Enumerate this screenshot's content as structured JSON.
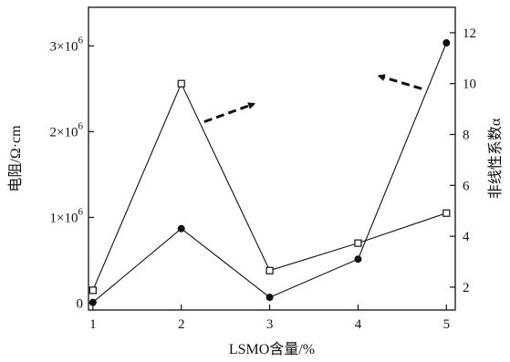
{
  "chart_data": {
    "type": "line",
    "xlabel": "LSMO含量/%",
    "ylabel_left": "电阻/Ω·cm",
    "ylabel_right": "非线性系数α",
    "x": [
      1,
      2,
      3,
      4,
      5
    ],
    "xticks": [
      "1",
      "2",
      "3",
      "4",
      "5"
    ],
    "xlim": [
      0.95,
      5.1
    ],
    "ylim_left": [
      -0.08,
      3.45
    ],
    "ylim_right": [
      1.1,
      13.0
    ],
    "yticks_left": [
      {
        "value": 0,
        "label": "0",
        "exp": ""
      },
      {
        "value": 1,
        "label": "1×10",
        "exp": "6"
      },
      {
        "value": 2,
        "label": "2×10",
        "exp": "6"
      },
      {
        "value": 3,
        "label": "3×10",
        "exp": "6"
      }
    ],
    "yticks_right": [
      {
        "value": 2,
        "label": "2"
      },
      {
        "value": 4,
        "label": "4"
      },
      {
        "value": 6,
        "label": "6"
      },
      {
        "value": 8,
        "label": "8"
      },
      {
        "value": 10,
        "label": "10"
      },
      {
        "value": 12,
        "label": "12"
      }
    ],
    "series": [
      {
        "axis": "left",
        "marker": "open-square",
        "values_scaled": [
          0.15,
          2.56,
          0.38,
          0.7,
          1.05
        ]
      },
      {
        "axis": "right",
        "marker": "filled-circle",
        "values": [
          1.4,
          4.3,
          1.6,
          3.1,
          11.6
        ]
      }
    ],
    "annotations": [
      {
        "type": "dashed-arrow",
        "direction": "right",
        "points_to": "right-axis"
      },
      {
        "type": "dashed-arrow",
        "direction": "left",
        "points_to": "left-axis"
      }
    ],
    "grid": false,
    "legend": "none"
  }
}
